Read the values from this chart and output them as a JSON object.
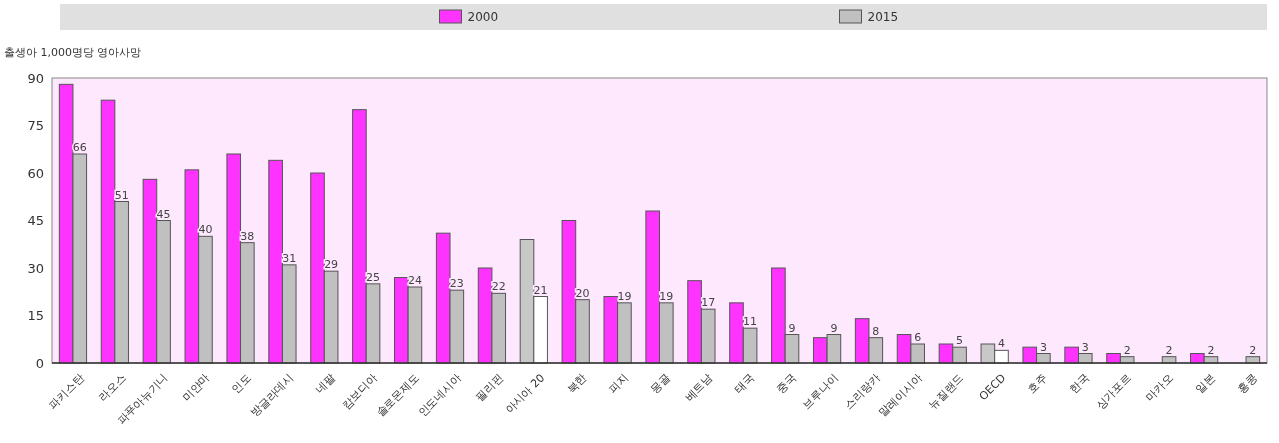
{
  "chart_data": {
    "type": "bar",
    "ylabel": "출생아 1,000명당 영아사망",
    "categories": [
      "파키스탄",
      "라오스",
      "파푸아뉴기니",
      "미얀마",
      "인도",
      "방글라데시",
      "네팔",
      "캄보디아",
      "솔로몬제도",
      "인도네시아",
      "필리핀",
      "아시아 20",
      "북한",
      "피지",
      "몽골",
      "베트남",
      "태국",
      "중국",
      "브루나이",
      "스리랑카",
      "말레이시아",
      "뉴질랜드",
      "OECD",
      "호주",
      "한국",
      "싱가포르",
      "마카오",
      "일본",
      "홍콩"
    ],
    "series": [
      {
        "name": "2000",
        "color": "#ff33ff",
        "colors": [
          "#ff33ff",
          "#ff33ff",
          "#ff33ff",
          "#ff33ff",
          "#ff33ff",
          "#ff33ff",
          "#ff33ff",
          "#ff33ff",
          "#ff33ff",
          "#ff33ff",
          "#ff33ff",
          "#c8c8c8",
          "#ff33ff",
          "#ff33ff",
          "#ff33ff",
          "#ff33ff",
          "#ff33ff",
          "#ff33ff",
          "#ff33ff",
          "#ff33ff",
          "#ff33ff",
          "#ff33ff",
          "#c8c8c8",
          "#ff33ff",
          "#ff33ff",
          "#ff33ff",
          "#ff33ff",
          "#ff33ff",
          "#ff33ff"
        ],
        "values": [
          88,
          83,
          58,
          61,
          66,
          64,
          60,
          80,
          27,
          41,
          30,
          39,
          45,
          21,
          48,
          26,
          19,
          30,
          8,
          14,
          9,
          6,
          6,
          5,
          5,
          3,
          null,
          3,
          null
        ]
      },
      {
        "name": "2015",
        "color": "#c0c0c0",
        "colors": [
          "#c0c0c0",
          "#c0c0c0",
          "#c0c0c0",
          "#c0c0c0",
          "#c0c0c0",
          "#c0c0c0",
          "#c0c0c0",
          "#c0c0c0",
          "#c0c0c0",
          "#c0c0c0",
          "#c0c0c0",
          "#ffffff",
          "#c0c0c0",
          "#c0c0c0",
          "#c0c0c0",
          "#c0c0c0",
          "#c0c0c0",
          "#c0c0c0",
          "#c0c0c0",
          "#c0c0c0",
          "#c0c0c0",
          "#c0c0c0",
          "#ffffff",
          "#c0c0c0",
          "#c0c0c0",
          "#c0c0c0",
          "#c0c0c0",
          "#c0c0c0",
          "#c0c0c0"
        ],
        "values": [
          66,
          51,
          45,
          40,
          38,
          31,
          29,
          25,
          24,
          23,
          22,
          21,
          20,
          19,
          19,
          17,
          11,
          9,
          9,
          8,
          6,
          5,
          4,
          3,
          3,
          2,
          2,
          2,
          2
        ],
        "value_labels": [
          "66",
          "51",
          "45",
          "40",
          "38",
          "31",
          "29",
          "25",
          "24",
          "23",
          "22",
          "21",
          "20",
          "19",
          "19",
          "17",
          "11",
          "9",
          "9",
          "8",
          "6",
          "5",
          "4",
          "3",
          "3",
          "2",
          "2",
          "2",
          "2"
        ]
      }
    ],
    "ylim": [
      0,
      90
    ],
    "yticks": [
      0,
      15,
      30,
      45,
      60,
      75,
      90
    ],
    "legend": "top"
  }
}
